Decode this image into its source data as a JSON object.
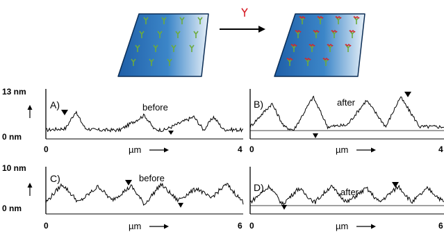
{
  "schematic": {
    "reagent_symbol_color": "#d8242c",
    "surface_color": "#2a6fb5",
    "molecule_colors": {
      "stem": "#6cab3c",
      "tip": "#d8242c"
    }
  },
  "y_axis_labels": {
    "top_row": {
      "max": "13 nm",
      "min": "0 nm"
    },
    "bottom_row": {
      "max": "10 nm",
      "min": "0 nm"
    }
  },
  "x_axis": {
    "unit": "µm",
    "top_row": {
      "start": "0",
      "end": "4"
    },
    "bottom_row": {
      "start": "0",
      "end": "6"
    }
  },
  "panels": [
    {
      "id": "A)",
      "caption": "before"
    },
    {
      "id": "B)",
      "caption": "after"
    },
    {
      "id": "C)",
      "caption": "before"
    },
    {
      "id": "D)",
      "caption": "after"
    }
  ],
  "chart_data": [
    {
      "type": "line",
      "panel": "A)",
      "title": "before",
      "xlabel": "µm",
      "xlim": [
        0,
        4
      ],
      "ylim": [
        0,
        13
      ],
      "x": [
        0,
        0.4,
        0.6,
        0.8,
        1.0,
        1.5,
        2.0,
        2.2,
        2.4,
        3.0,
        3.2,
        3.4,
        3.6,
        4.0
      ],
      "y": [
        1.0,
        1.5,
        6.5,
        1.5,
        1.0,
        1.0,
        5.5,
        1.2,
        1.0,
        5.0,
        1.0,
        5.0,
        1.2,
        1.0
      ]
    },
    {
      "type": "line",
      "panel": "B)",
      "title": "after",
      "xlabel": "µm",
      "xlim": [
        0,
        4
      ],
      "ylim": [
        0,
        13
      ],
      "x": [
        0,
        0.45,
        0.7,
        0.9,
        1.3,
        1.6,
        2.0,
        2.4,
        2.8,
        3.1,
        3.5,
        4.0
      ],
      "y": [
        2.0,
        9.0,
        2.0,
        1.0,
        11.0,
        2.0,
        2.5,
        10.0,
        2.0,
        11.0,
        2.0,
        2.0
      ]
    },
    {
      "type": "line",
      "panel": "C)",
      "title": "before",
      "xlabel": "µm",
      "xlim": [
        0,
        6
      ],
      "ylim": [
        0,
        10
      ],
      "x": [
        0,
        0.5,
        1.0,
        1.6,
        2.0,
        2.6,
        3.0,
        3.5,
        4.0,
        4.6,
        5.0,
        5.5,
        6.0
      ],
      "y": [
        1.5,
        6.0,
        1.5,
        5.5,
        2.0,
        5.5,
        1.0,
        6.0,
        2.0,
        5.0,
        2.5,
        6.0,
        1.5
      ]
    },
    {
      "type": "line",
      "panel": "D)",
      "title": "after",
      "xlabel": "µm",
      "xlim": [
        0,
        6
      ],
      "ylim": [
        0,
        10
      ],
      "x": [
        0,
        0.6,
        1.0,
        1.5,
        2.0,
        2.5,
        3.0,
        3.6,
        4.0,
        4.6,
        5.0,
        5.5,
        6.0
      ],
      "y": [
        1.5,
        5.5,
        1.0,
        5.0,
        1.5,
        5.5,
        1.5,
        5.0,
        1.5,
        5.5,
        1.5,
        5.0,
        1.5
      ]
    }
  ]
}
